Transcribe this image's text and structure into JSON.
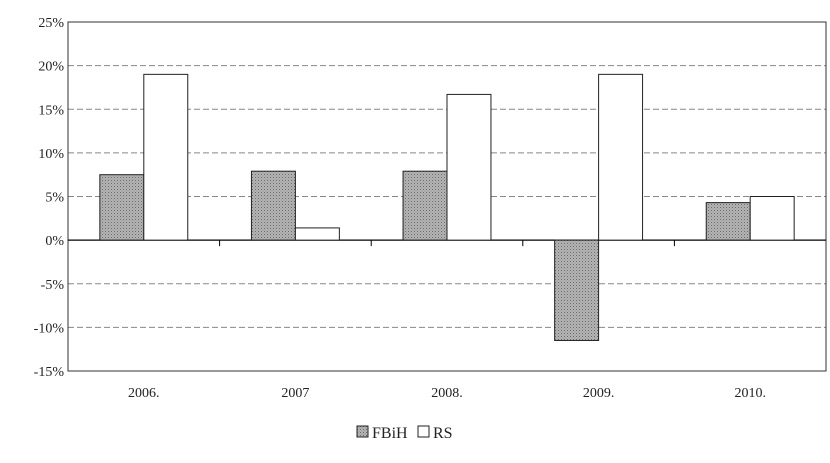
{
  "chart_data": {
    "type": "bar",
    "title": "",
    "xlabel": "",
    "ylabel": "",
    "categories": [
      "2006.",
      "2007",
      "2008.",
      "2009.",
      "2010."
    ],
    "series": [
      {
        "name": "FBiH",
        "values": [
          7.5,
          7.9,
          7.9,
          -11.5,
          4.3
        ],
        "color": "#a8a8a8",
        "pattern": "dotted-gray"
      },
      {
        "name": "RS",
        "values": [
          19.0,
          1.4,
          16.7,
          19.0,
          5.0
        ],
        "color": "#ffffff",
        "pattern": "none"
      }
    ],
    "ylim": [
      -15,
      25
    ],
    "yticks": [
      25,
      20,
      15,
      10,
      5,
      0,
      -5,
      -10,
      -15
    ],
    "ytick_labels": [
      "25%",
      "20%",
      "15%",
      "10%",
      "5%",
      "0%",
      "-5%",
      "-10%",
      "-15%"
    ],
    "grid": true,
    "legend_position": "bottom-center"
  }
}
